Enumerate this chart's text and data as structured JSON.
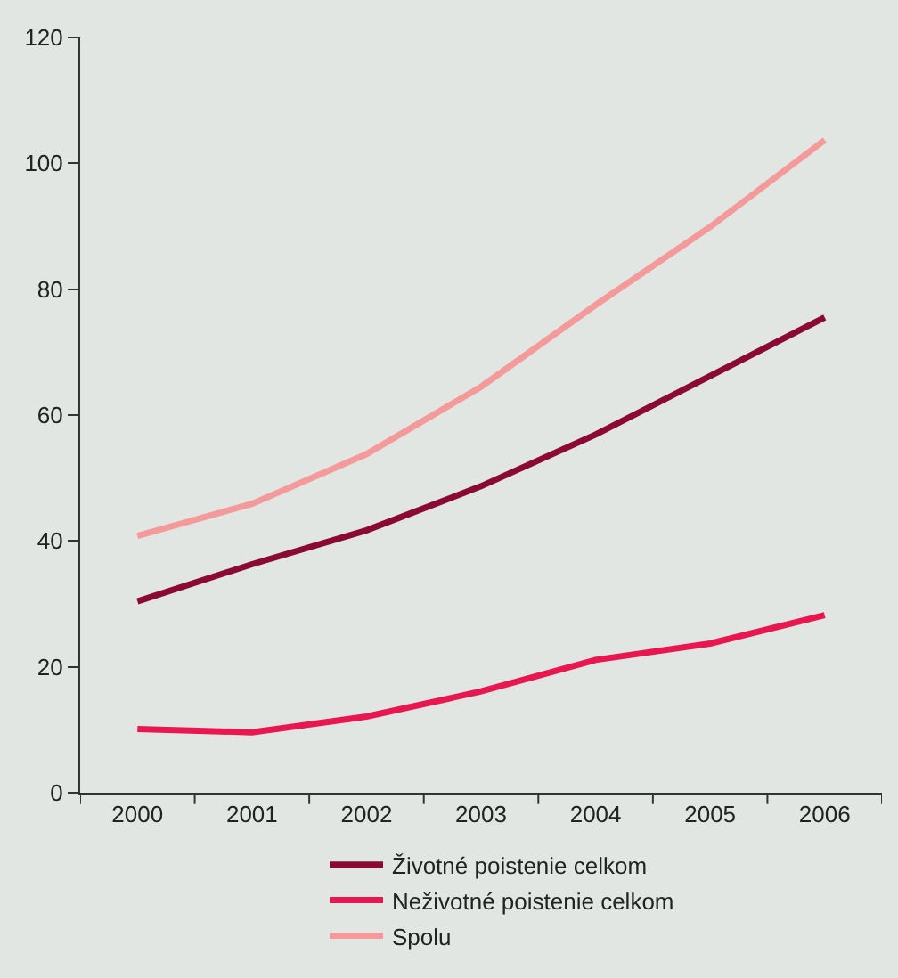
{
  "chart_data": {
    "type": "line",
    "categories": [
      "2000",
      "2001",
      "2002",
      "2003",
      "2004",
      "2005",
      "2006"
    ],
    "series": [
      {
        "name": "Životné poistenie celkom",
        "color": "#8b0a35",
        "values": [
          30.4,
          36.3,
          41.7,
          48.7,
          56.9,
          66.2,
          75.5
        ]
      },
      {
        "name": "Neživotné poistenie celkom",
        "color": "#e8174f",
        "values": [
          10.1,
          9.6,
          12.1,
          16.1,
          21.1,
          23.7,
          28.2
        ]
      },
      {
        "name": "Spolu",
        "color": "#f59a9a",
        "values": [
          40.8,
          45.9,
          53.8,
          64.5,
          77.5,
          89.9,
          103.7
        ]
      }
    ],
    "ylim": [
      0,
      120
    ],
    "yticks": [
      0,
      20,
      40,
      60,
      80,
      100,
      120
    ],
    "grid": false,
    "legend": "bottom",
    "marker": "none",
    "line_style": "solid"
  }
}
